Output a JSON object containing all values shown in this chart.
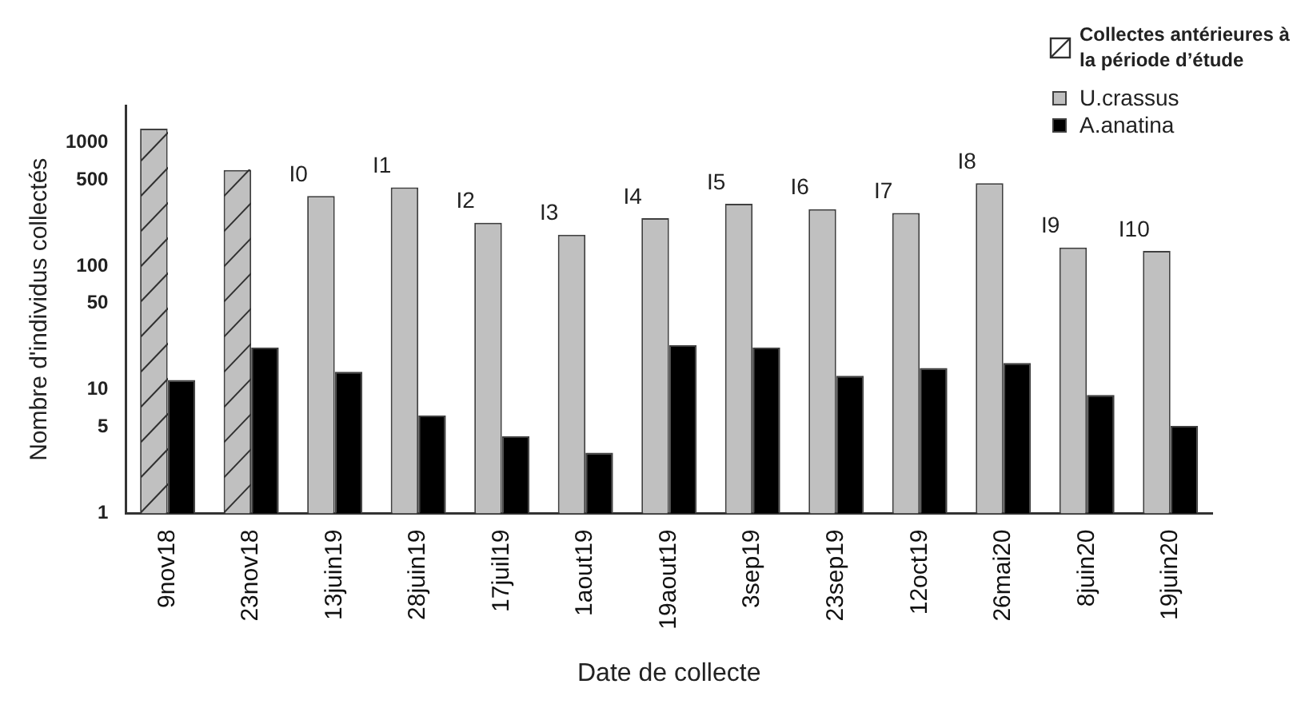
{
  "chart_data": {
    "type": "bar",
    "xlabel": "Date de collecte",
    "ylabel": "Nombre d'individus collectés",
    "categories": [
      "9nov18",
      "23nov18",
      "13juin19",
      "28juin19",
      "17juil19",
      "1aout19",
      "19aout19",
      "3sep19",
      "23sep19",
      "12oct19",
      "26mai20",
      "8juin20",
      "19juin20"
    ],
    "series": [
      {
        "name": "U.crassus",
        "color": "#c0c0c0",
        "values": [
          1300,
          600,
          370,
          435,
          225,
          180,
          245,
          320,
          290,
          270,
          470,
          142,
          133
        ]
      },
      {
        "name": "A.anatina",
        "color": "#000000",
        "values": [
          12,
          22,
          14,
          6.2,
          4.2,
          3.1,
          23,
          22,
          13,
          15,
          16.5,
          9.1,
          5.1
        ]
      }
    ],
    "log": "y",
    "ylim": [
      1,
      2000
    ],
    "yticks": [
      1,
      5,
      10,
      50,
      100,
      500,
      1000
    ],
    "grid": false,
    "legend": "top right",
    "annotations": [
      "Collectes antérieures à la période d’étude",
      "I0",
      "I1",
      "I2",
      "I3",
      "I4",
      "I5",
      "I6",
      "I7",
      "I8",
      "I9",
      "I10"
    ]
  }
}
